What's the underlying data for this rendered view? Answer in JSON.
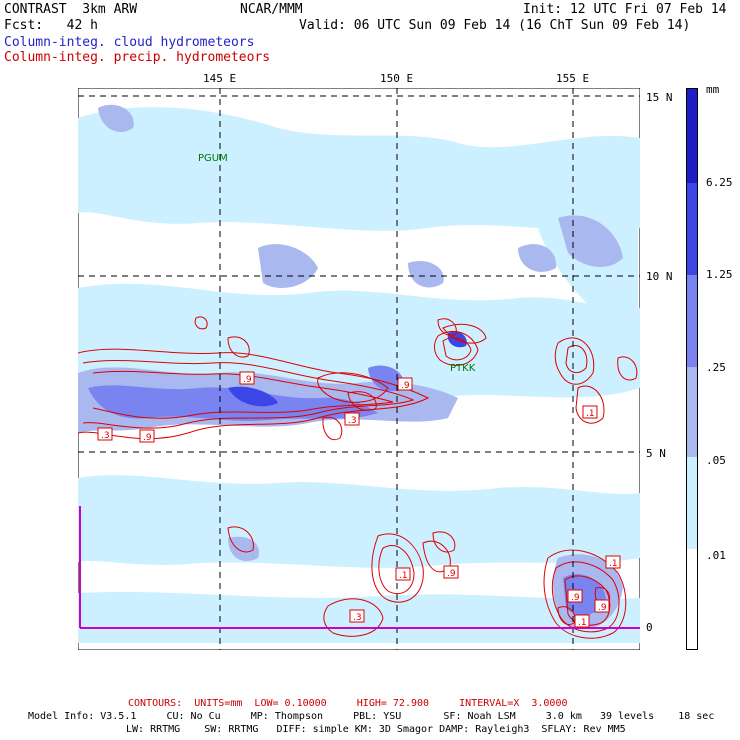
{
  "header": {
    "model": "CONTRAST  3km ARW",
    "org": "NCAR/MMM",
    "init": "Init: 12 UTC Fri 07 Feb 14",
    "fcst": "Fcst:   42 h",
    "valid": "Valid: 06 UTC Sun 09 Feb 14 (16 ChT Sun 09 Feb 14)",
    "field1": "Column-integ. cloud hydrometeors",
    "field2": "Column-integ. precip. hydrometeors"
  },
  "colors": {
    "cloud_light": "#ccf0ff",
    "cloud_mid": "#aab8f0",
    "cloud_dark": "#7a84f0",
    "cloud_darker": "#3c46e6",
    "cloud_darkest": "#1e1ec8",
    "precip": "#dd0000",
    "boundary": "#cc00cc"
  },
  "axes": {
    "lon_labels": [
      "145 E",
      "150 E",
      "155 E"
    ],
    "lat_labels": [
      "15 N",
      "10 N",
      "5 N",
      "0"
    ]
  },
  "stations": [
    "PGUM",
    "PTKK"
  ],
  "contour_labels": [
    ".9",
    ".3",
    ".9",
    ".3",
    ".9",
    ".1",
    ".1",
    ".9",
    ".3",
    ".1",
    ".9",
    ".9",
    ".1"
  ],
  "legend": {
    "unit": "mm",
    "levels": [
      "6.25",
      "1.25",
      ".25",
      ".05",
      ".01"
    ]
  },
  "footer": {
    "contours": "CONTOURS:  UNITS=mm  LOW= 0.10000     HIGH= 72.900     INTERVAL=X  3.0000",
    "info1": "Model Info: V3.5.1     CU: No Cu     MP: Thompson     PBL: YSU       SF: Noah LSM     3.0 km   39 levels    18 sec",
    "info2": "LW: RRTMG    SW: RRTMG   DIFF: simple KM: 3D Smagor DAMP: Rayleigh3  SFLAY: Rev MM5"
  }
}
